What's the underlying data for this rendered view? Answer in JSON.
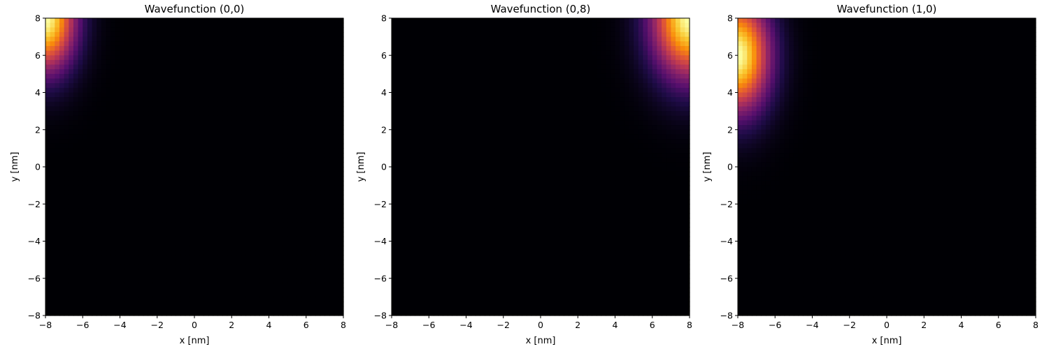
{
  "chart_data": [
    {
      "type": "heatmap",
      "title": "Wavefunction (0,0)",
      "xlabel": "x [nm]",
      "ylabel": "y [nm]",
      "xlim": [
        -8,
        8
      ],
      "ylim": [
        -8,
        8
      ],
      "xticks": [
        -8,
        -6,
        -4,
        -2,
        0,
        2,
        4,
        6,
        8
      ],
      "yticks": [
        -8,
        -6,
        -4,
        -2,
        0,
        2,
        4,
        6,
        8
      ],
      "colormap": "inferno",
      "grid": false,
      "peak": {
        "x": -8,
        "y": 8
      },
      "spread": {
        "x": 1.6,
        "y": 2.8
      },
      "lobes": 1
    },
    {
      "type": "heatmap",
      "title": "Wavefunction (0,8)",
      "xlabel": "x [nm]",
      "ylabel": "y [nm]",
      "xlim": [
        -8,
        8
      ],
      "ylim": [
        -8,
        8
      ],
      "xticks": [
        -8,
        -6,
        -4,
        -2,
        0,
        2,
        4,
        6,
        8
      ],
      "yticks": [
        -8,
        -6,
        -4,
        -2,
        0,
        2,
        4,
        6,
        8
      ],
      "colormap": "inferno",
      "grid": false,
      "peak": {
        "x": 8,
        "y": 8
      },
      "spread": {
        "x": 2.0,
        "y": 3.2
      },
      "lobes": 1
    },
    {
      "type": "heatmap",
      "title": "Wavefunction (1,0)",
      "xlabel": "x [nm]",
      "ylabel": "y [nm]",
      "xlim": [
        -8,
        8
      ],
      "ylim": [
        -8,
        8
      ],
      "xticks": [
        -8,
        -6,
        -4,
        -2,
        0,
        2,
        4,
        6,
        8
      ],
      "yticks": [
        -8,
        -6,
        -4,
        -2,
        0,
        2,
        4,
        6,
        8
      ],
      "colormap": "inferno",
      "grid": false,
      "peak": {
        "x": -8,
        "y": 6
      },
      "spread": {
        "x": 1.7,
        "y": 3.0
      },
      "lobes": 1
    }
  ]
}
